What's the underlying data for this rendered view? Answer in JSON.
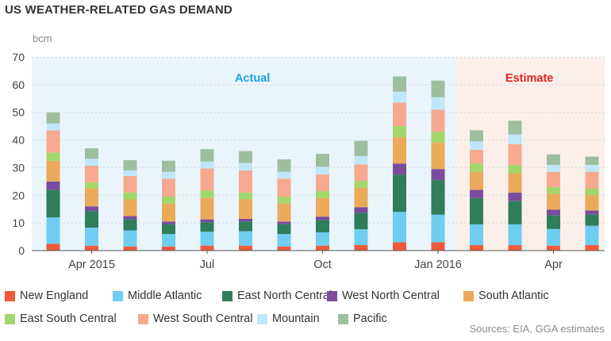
{
  "title": "US WEATHER-RELATED GAS DEMAND",
  "source": "Sources: EIA, GGA estimates",
  "regions": {
    "actual_label": "Actual",
    "estimate_label": "Estimate",
    "actual_color": "#eaf4fb",
    "estimate_color": "#fcefe9",
    "actual_text_color": "#1aa6dc",
    "estimate_text_color": "#e02424"
  },
  "chart_data": {
    "type": "bar",
    "stacked": true,
    "ylabel": "bcm",
    "ylim": [
      0,
      70
    ],
    "yticks": [
      0,
      10,
      20,
      30,
      40,
      50,
      60,
      70
    ],
    "grid": true,
    "legend_position": "bottom",
    "x_tick_labels": [
      {
        "label": "Apr 2015",
        "index": 1
      },
      {
        "label": "Jul",
        "index": 4
      },
      {
        "label": "Oct",
        "index": 7
      },
      {
        "label": "Jan 2016",
        "index": 10
      },
      {
        "label": "Apr",
        "index": 13
      }
    ],
    "categories": [
      "Mar 2015",
      "Apr 2015",
      "May 2015",
      "Jun 2015",
      "Jul 2015",
      "Aug 2015",
      "Sep 2015",
      "Oct 2015",
      "Nov 2015",
      "Dec 2015",
      "Jan 2016",
      "Feb 2016",
      "Mar 2016",
      "Apr 2016",
      "May 2016"
    ],
    "actual_count": 11,
    "series": [
      {
        "name": "New England",
        "color": "#ef5a3c",
        "values": [
          2.5,
          1.8,
          1.5,
          1.5,
          1.8,
          1.8,
          1.5,
          1.8,
          2.0,
          3.0,
          3.0,
          2.0,
          2.0,
          1.8,
          2.0
        ]
      },
      {
        "name": "Middle Atlantic",
        "color": "#6fcdf2",
        "values": [
          9.5,
          6.5,
          5.8,
          4.5,
          5.0,
          5.2,
          4.5,
          4.8,
          5.7,
          11.0,
          10.0,
          7.5,
          7.5,
          6.0,
          7.0
        ]
      },
      {
        "name": "East North Central",
        "color": "#2e7d5b",
        "values": [
          10.0,
          6.0,
          4.0,
          3.5,
          3.5,
          3.5,
          3.5,
          4.5,
          6.0,
          13.5,
          12.5,
          9.5,
          8.5,
          5.0,
          4.0
        ]
      },
      {
        "name": "West North Central",
        "color": "#7a4c9e",
        "values": [
          3.0,
          1.7,
          1.2,
          1.0,
          1.0,
          1.0,
          1.0,
          1.2,
          2.0,
          4.0,
          4.0,
          3.0,
          3.0,
          2.0,
          1.5
        ]
      },
      {
        "name": "South Atlantic",
        "color": "#eaaa5a",
        "values": [
          7.5,
          6.5,
          6.0,
          6.5,
          7.7,
          7.0,
          6.5,
          6.7,
          7.0,
          9.5,
          9.5,
          6.5,
          7.0,
          5.7,
          5.5
        ]
      },
      {
        "name": "East South Central",
        "color": "#a2d66b",
        "values": [
          3.0,
          2.2,
          2.5,
          2.5,
          2.7,
          2.5,
          2.5,
          2.5,
          2.5,
          4.0,
          4.0,
          3.0,
          3.0,
          2.5,
          2.5
        ]
      },
      {
        "name": "West South Central",
        "color": "#f7a98f",
        "values": [
          8.0,
          6.0,
          6.0,
          6.5,
          8.0,
          8.0,
          6.5,
          6.0,
          6.0,
          8.5,
          8.0,
          5.0,
          7.5,
          5.5,
          6.0
        ]
      },
      {
        "name": "Mountain",
        "color": "#bfe7f9",
        "values": [
          2.5,
          2.5,
          2.0,
          2.5,
          2.5,
          2.7,
          2.5,
          2.8,
          3.0,
          4.0,
          4.5,
          3.0,
          3.5,
          2.5,
          2.5
        ]
      },
      {
        "name": "Pacific",
        "color": "#9dbfa0",
        "values": [
          4.0,
          3.8,
          3.7,
          4.0,
          4.5,
          4.3,
          4.5,
          4.7,
          5.5,
          5.5,
          6.0,
          4.0,
          5.0,
          3.8,
          3.0
        ]
      }
    ]
  }
}
